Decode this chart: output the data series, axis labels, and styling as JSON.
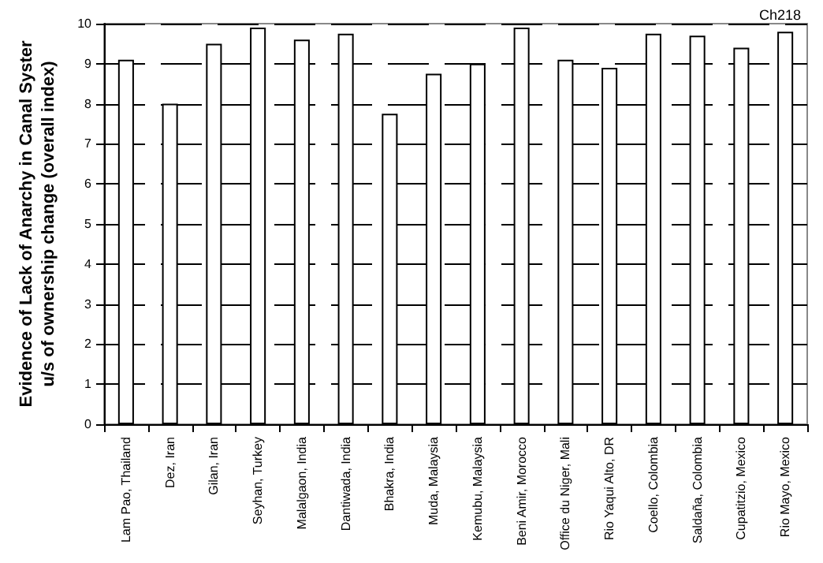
{
  "chart_data": {
    "type": "bar",
    "ylabel": "Evidence of Lack of Anarchy in Canal Syster\nu/s of ownership change (overall index)",
    "annotations": [
      "Ch218"
    ],
    "categories": [
      "Lam Pao, Thailand",
      "Dez, Iran",
      "Gilan, Iran",
      "Seyhan, Turkey",
      "Malalgaon, India",
      "Dantiwada, India",
      "Bhakra, India",
      "Muda, Malaysia",
      "Kemubu, Malaysia",
      "Beni Amir, Morocco",
      "Office du Niger, Mali",
      "Rio Yaqui Alto, DR",
      "Coello, Colombia",
      "Saldaña, Colombia",
      "Cupatitzio, Mexico",
      "Rio Mayo, Mexico"
    ],
    "values": [
      9.1,
      8.0,
      9.5,
      9.9,
      9.6,
      9.75,
      7.75,
      8.75,
      9.0,
      9.9,
      9.1,
      8.9,
      9.75,
      9.7,
      9.4,
      9.8
    ],
    "color": "#ffffff",
    "ylim": [
      0,
      10
    ],
    "yticks": [
      0,
      1,
      2,
      3,
      4,
      5,
      6,
      7,
      8,
      9,
      10
    ],
    "grid": "y"
  }
}
